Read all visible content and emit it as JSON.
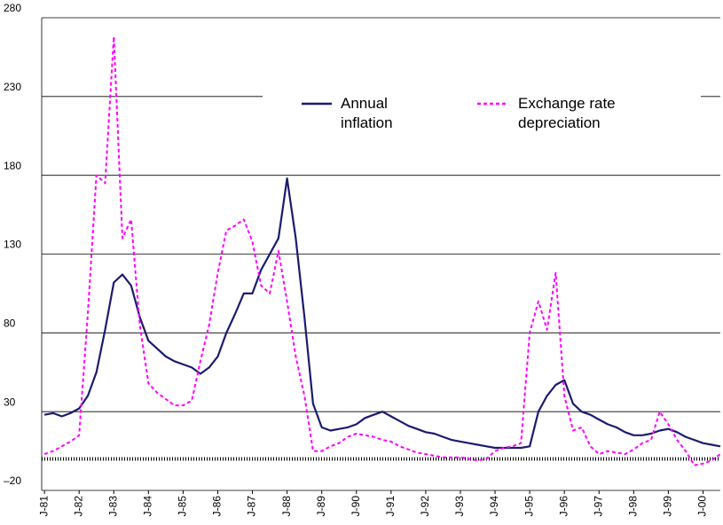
{
  "chart_data": {
    "type": "line",
    "x": [
      1981,
      1981.25,
      1981.5,
      1981.75,
      1982,
      1982.25,
      1982.5,
      1982.75,
      1983,
      1983.25,
      1983.5,
      1983.75,
      1984,
      1984.25,
      1984.5,
      1984.75,
      1985,
      1985.25,
      1985.5,
      1985.75,
      1986,
      1986.25,
      1986.5,
      1986.75,
      1987,
      1987.25,
      1987.5,
      1987.75,
      1988,
      1988.25,
      1988.5,
      1988.75,
      1989,
      1989.25,
      1989.5,
      1989.75,
      1990,
      1990.25,
      1990.5,
      1990.75,
      1991,
      1991.25,
      1991.5,
      1991.75,
      1992,
      1992.25,
      1992.5,
      1992.75,
      1993,
      1993.25,
      1993.5,
      1993.75,
      1994,
      1994.25,
      1994.5,
      1994.75,
      1995,
      1995.25,
      1995.5,
      1995.75,
      1996,
      1996.25,
      1996.5,
      1996.75,
      1997,
      1997.25,
      1997.5,
      1997.75,
      1998,
      1998.25,
      1998.5,
      1998.75,
      1999,
      1999.25,
      1999.5,
      1999.75,
      2000,
      2000.25,
      2000.5
    ],
    "series": [
      {
        "name": "Annual inflation",
        "color": "#1b1b6f",
        "dash": false,
        "values": [
          28,
          29,
          27,
          29,
          32,
          40,
          55,
          82,
          112,
          117,
          110,
          90,
          75,
          70,
          65,
          62,
          60,
          58,
          54,
          58,
          65,
          80,
          92,
          105,
          105,
          120,
          130,
          140,
          178,
          140,
          90,
          35,
          20,
          18,
          19,
          20,
          22,
          26,
          28,
          30,
          27,
          24,
          21,
          19,
          17,
          16,
          14,
          12,
          11,
          10,
          9,
          8,
          7,
          7,
          7,
          7,
          8,
          30,
          40,
          47,
          50,
          35,
          30,
          28,
          25,
          22,
          20,
          17,
          15,
          15,
          16,
          18,
          19,
          17,
          14,
          12,
          10,
          9,
          8
        ]
      },
      {
        "name": "Exchange rate depreciation",
        "color": "#ff00ff",
        "dash": true,
        "values": [
          3,
          5,
          8,
          11,
          15,
          92,
          180,
          175,
          268,
          140,
          152,
          85,
          48,
          42,
          38,
          34,
          34,
          37,
          62,
          85,
          118,
          145,
          148,
          152,
          138,
          110,
          105,
          132,
          100,
          65,
          40,
          5,
          5,
          8,
          10,
          14,
          16,
          15,
          14,
          12,
          11,
          8,
          6,
          4,
          3,
          2,
          1,
          1,
          1,
          0,
          -1,
          0,
          5,
          7,
          8,
          10,
          80,
          100,
          82,
          118,
          40,
          18,
          20,
          8,
          3,
          5,
          4,
          3,
          6,
          10,
          12,
          30,
          22,
          12,
          5,
          -4,
          -3,
          -1,
          3
        ]
      }
    ],
    "xlim": [
      1980.92,
      2000.5
    ],
    "xticks": [
      {
        "value": 1981,
        "label": "J-81"
      },
      {
        "value": 1982,
        "label": "J-82"
      },
      {
        "value": 1983,
        "label": "J-83"
      },
      {
        "value": 1984,
        "label": "J-84"
      },
      {
        "value": 1985,
        "label": "J-85"
      },
      {
        "value": 1986,
        "label": "J-86"
      },
      {
        "value": 1987,
        "label": "J-87"
      },
      {
        "value": 1988,
        "label": "J-88"
      },
      {
        "value": 1989,
        "label": "J-89"
      },
      {
        "value": 1990,
        "label": "J-90"
      },
      {
        "value": 1991,
        "label": "J-91"
      },
      {
        "value": 1992,
        "label": "J-92"
      },
      {
        "value": 1993,
        "label": "J-93"
      },
      {
        "value": 1994,
        "label": "J-94"
      },
      {
        "value": 1995,
        "label": "J-95"
      },
      {
        "value": 1996,
        "label": "J-96"
      },
      {
        "value": 1997,
        "label": "J-97"
      },
      {
        "value": 1998,
        "label": "J-98"
      },
      {
        "value": 1999,
        "label": "J-99"
      },
      {
        "value": 2000,
        "label": "J-00"
      }
    ],
    "ylim": [
      -20,
      280
    ],
    "yticks": [
      {
        "value": -20,
        "label": "–20"
      },
      30,
      80,
      130,
      180,
      230,
      280
    ],
    "grid": true
  }
}
